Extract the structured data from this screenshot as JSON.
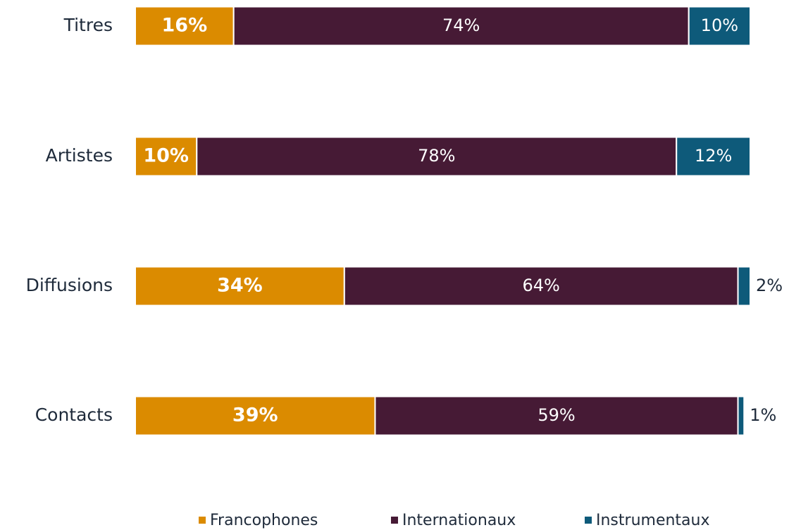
{
  "chart_data": {
    "type": "stacked-barh",
    "categories": [
      "Titres",
      "Artistes",
      "Diffusions",
      "Contacts"
    ],
    "series": [
      {
        "name": "Francophones",
        "color": "#db8b00",
        "values": [
          16,
          10,
          34,
          39
        ],
        "value_labels": [
          "16%",
          "10%",
          "34%",
          "39%"
        ]
      },
      {
        "name": "Internationaux",
        "color": "#461a35",
        "values": [
          74,
          78,
          64,
          59
        ],
        "value_labels": [
          "74%",
          "78%",
          "64%",
          "59%"
        ]
      },
      {
        "name": "Instrumentaux",
        "color": "#0e5a7a",
        "values": [
          10,
          12,
          2,
          1
        ],
        "value_labels": [
          "10%",
          "12%",
          "2%",
          "1%"
        ]
      }
    ],
    "xlim": [
      0,
      100
    ],
    "legend": "bottom"
  }
}
